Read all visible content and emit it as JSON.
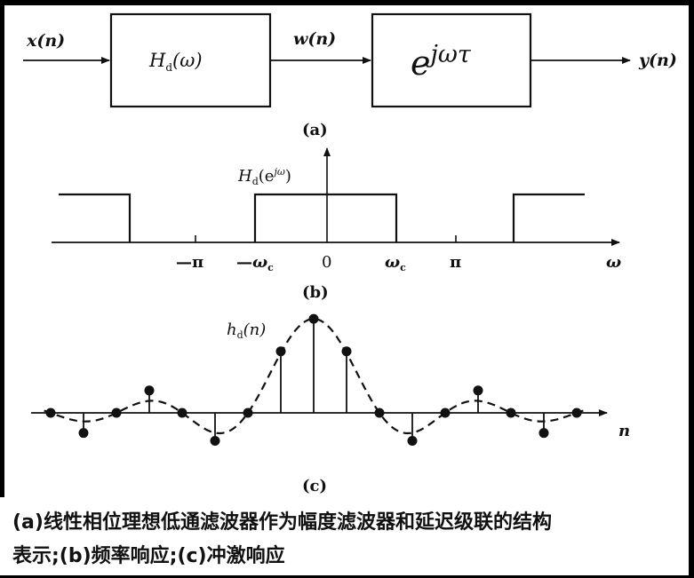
{
  "block_diagram": {
    "input_label": "x(n)",
    "filter_box": {
      "main": "H",
      "sub": "d",
      "arg": "(ω)"
    },
    "middle_label": "w(n)",
    "delay_box": {
      "base": "e",
      "exponent": "jωτ"
    },
    "output_label": "y(n)",
    "sub_caption": "(a)"
  },
  "freq_response": {
    "ylabel": {
      "main": "H",
      "sub": "d",
      "arg": "(e",
      "arg_sup": "jω",
      "close": ")"
    },
    "ticks": {
      "neg_pi": "—π",
      "neg_wc": {
        "sign": "—",
        "main": "ω",
        "sub": "c"
      },
      "zero": "0",
      "wc": {
        "main": "ω",
        "sub": "c"
      },
      "pi": "π"
    },
    "xlabel": "ω",
    "sub_caption": "(b)"
  },
  "impulse_response": {
    "ylabel": {
      "main": "h",
      "sub": "d",
      "arg": "(n)"
    },
    "xlabel": "n",
    "samples": [
      {
        "n": -8,
        "value": 0.0
      },
      {
        "n": -7,
        "value": -0.18
      },
      {
        "n": -6,
        "value": 0.0
      },
      {
        "n": -5,
        "value": 0.2
      },
      {
        "n": -4,
        "value": 0.0
      },
      {
        "n": -3,
        "value": -0.25
      },
      {
        "n": -2,
        "value": 0.0
      },
      {
        "n": -1,
        "value": 0.55
      },
      {
        "n": 0,
        "value": 0.84
      },
      {
        "n": 1,
        "value": 0.55
      },
      {
        "n": 2,
        "value": 0.0
      },
      {
        "n": 3,
        "value": -0.25
      },
      {
        "n": 4,
        "value": 0.0
      },
      {
        "n": 5,
        "value": 0.2
      },
      {
        "n": 6,
        "value": 0.0
      },
      {
        "n": 7,
        "value": -0.18
      },
      {
        "n": 8,
        "value": 0.0
      }
    ],
    "sub_caption": "(c)"
  },
  "caption": {
    "line1": "(a)线性相位理想低通滤波器作为幅度滤波器和延迟级联的结构",
    "line2": "表示;(b)频率响应;(c)冲激响应"
  }
}
